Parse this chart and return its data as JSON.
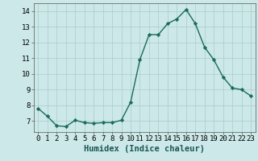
{
  "x": [
    0,
    1,
    2,
    3,
    4,
    5,
    6,
    7,
    8,
    9,
    10,
    11,
    12,
    13,
    14,
    15,
    16,
    17,
    18,
    19,
    20,
    21,
    22,
    23
  ],
  "y": [
    7.8,
    7.3,
    6.7,
    6.65,
    7.05,
    6.9,
    6.85,
    6.9,
    6.9,
    7.05,
    8.2,
    10.9,
    12.5,
    12.5,
    13.2,
    13.5,
    14.1,
    13.2,
    11.7,
    10.9,
    9.8,
    9.1,
    9.0,
    8.6
  ],
  "line_color": "#1a6b5a",
  "marker": "D",
  "marker_size": 2.2,
  "line_width": 1.0,
  "bg_color": "#cce8e8",
  "grid_color": "#aacccc",
  "xlabel": "Humidex (Indice chaleur)",
  "xlabel_fontsize": 7.5,
  "tick_fontsize": 6.5,
  "ylim": [
    6.3,
    14.5
  ],
  "xlim": [
    -0.5,
    23.5
  ],
  "yticks": [
    7,
    8,
    9,
    10,
    11,
    12,
    13,
    14
  ],
  "xticks": [
    0,
    1,
    2,
    3,
    4,
    5,
    6,
    7,
    8,
    9,
    10,
    11,
    12,
    13,
    14,
    15,
    16,
    17,
    18,
    19,
    20,
    21,
    22,
    23
  ]
}
